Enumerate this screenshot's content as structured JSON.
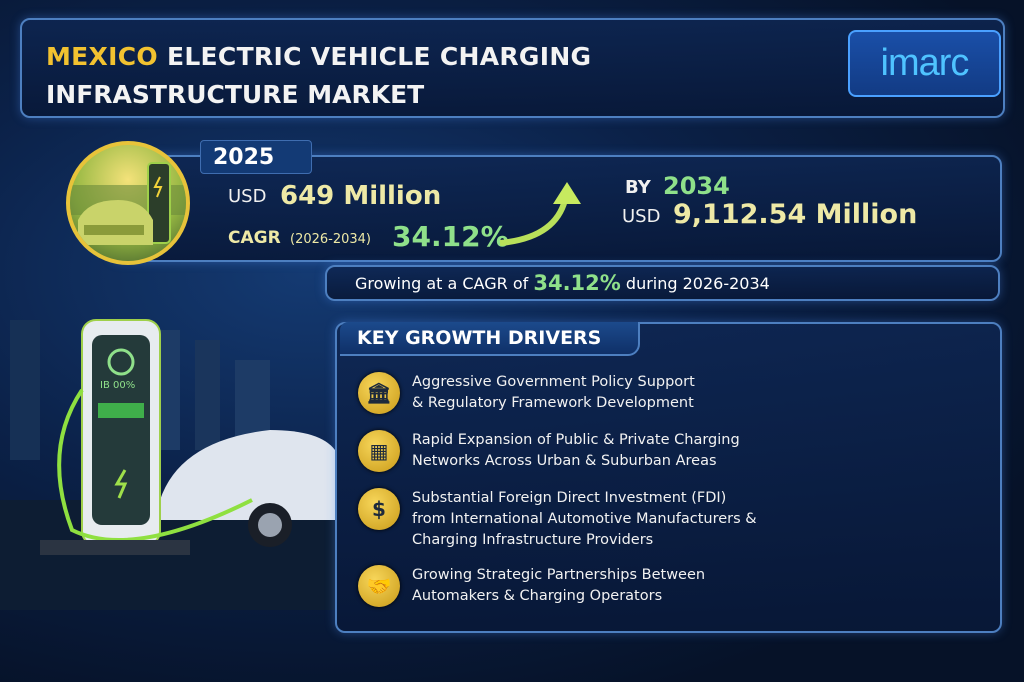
{
  "title": {
    "highlight": "MEXICO",
    "line1_rest": " ELECTRIC VEHICLE CHARGING",
    "line2": "INFRASTRUCTURE MARKET"
  },
  "logo": "imarc",
  "stats": {
    "base_year": "2025",
    "base_currency": "USD",
    "base_value": "649 Million",
    "cagr_label": "CAGR",
    "cagr_period": "(2026-2034)",
    "cagr_value": "34.12%",
    "target_prefix": "BY",
    "target_year": "2034",
    "target_currency": "USD",
    "target_value": "9,112.54 Million"
  },
  "growing": {
    "pre": "Growing at a CAGR of",
    "value": "34.12%",
    "post": "during 2026-2034"
  },
  "illustration": {
    "charger_display": "IB 00%"
  },
  "drivers": {
    "heading": "KEY GROWTH DRIVERS",
    "items": [
      {
        "icon": "government-building-icon",
        "line1": "Aggressive Government Policy Support",
        "line2": "& Regulatory Framework Development",
        "line3": ""
      },
      {
        "icon": "charging-network-icon",
        "line1": "Rapid Expansion of Public & Private Charging",
        "line2": "Networks Across Urban & Suburban Areas",
        "line3": ""
      },
      {
        "icon": "investment-hand-dollar-icon",
        "line1": "Substantial Foreign Direct Investment (FDI)",
        "line2": "from International Automotive Manufacturers &",
        "line3": "Charging Infrastructure Providers"
      },
      {
        "icon": "handshake-icon",
        "line1": "Growing Strategic Partnerships Between",
        "line2": "Automakers & Charging Operators",
        "line3": ""
      }
    ]
  },
  "colors": {
    "accent_yellow": "#f2c230",
    "accent_green": "#8fe08a",
    "navy": "#0b2148"
  }
}
